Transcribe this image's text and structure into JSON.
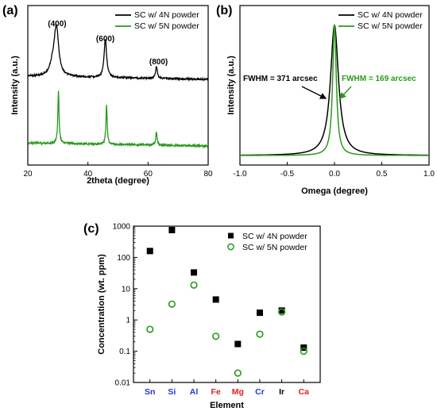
{
  "colors": {
    "black": "#000000",
    "green": "#2a9a1c",
    "blue": "#1f35d6",
    "red": "#e02020",
    "annotation_black": "#000000"
  },
  "chart_data": [
    {
      "type": "line",
      "panel": "(a)",
      "xlabel": "2theta (degree)",
      "ylabel": "Intensity (a.u.)",
      "xlim": [
        20,
        80
      ],
      "xticks": [
        "20",
        "40",
        "60",
        "80"
      ],
      "legend": [
        "SC w/ 4N powder",
        "SC w/ 5N powder"
      ],
      "legend_position": "top-right",
      "annotations": [
        "(400)",
        "(600)",
        "(800)"
      ],
      "series": [
        {
          "name": "SC w/ 4N powder",
          "peaks": [
            {
              "x": 29.5,
              "height": 1.0,
              "width": 0.9,
              "shoulder": true
            },
            {
              "x": 45.8,
              "height": 0.78,
              "width": 0.5
            },
            {
              "x": 62.8,
              "height": 0.25,
              "width": 0.35
            }
          ]
        },
        {
          "name": "SC w/ 5N powder",
          "peaks": [
            {
              "x": 30.2,
              "height": 1.0,
              "width": 0.25
            },
            {
              "x": 46.2,
              "height": 0.73,
              "width": 0.25
            },
            {
              "x": 62.8,
              "height": 0.26,
              "width": 0.25
            }
          ]
        }
      ]
    },
    {
      "type": "line",
      "panel": "(b)",
      "xlabel": "Omega (degree)",
      "ylabel": "Intensity (a.u.)",
      "xlim": [
        -1.0,
        1.0
      ],
      "xticks": [
        "-1.0",
        "-0.5",
        "0.0",
        "0.5",
        "1.0"
      ],
      "legend": [
        "SC w/ 4N powder",
        "SC w/ 5N powder"
      ],
      "legend_position": "top-right",
      "annotations": [
        "FWHM = 371 arcsec",
        "FWHM = 169 arcsec"
      ],
      "series": [
        {
          "name": "SC w/ 4N powder",
          "center": 0.0,
          "fwhm_deg": 0.103
        },
        {
          "name": "SC w/ 5N powder",
          "center": 0.0,
          "fwhm_deg": 0.047
        }
      ]
    },
    {
      "type": "scatter",
      "panel": "(c)",
      "xlabel": "Element",
      "ylabel": "Concentration (wt. ppm)",
      "yscale": "log",
      "ylim": [
        0.01,
        1000
      ],
      "yticks": [
        "0.01",
        "0.1",
        "1",
        "10",
        "100",
        "1000"
      ],
      "categories": [
        "Sn",
        "Si",
        "Al",
        "Fe",
        "Mg",
        "Cr",
        "Ir",
        "Ca"
      ],
      "category_colors": [
        "#1f35d6",
        "#1f35d6",
        "#1f35d6",
        "#e02020",
        "#e02020",
        "#1f35d6",
        "#000000",
        "#e02020"
      ],
      "legend": [
        "SC w/ 4N powder",
        "SC w/ 5N powder"
      ],
      "legend_position": "top-right",
      "series": [
        {
          "name": "SC w/ 4N powder",
          "marker": "filled-square",
          "values": [
            160,
            750,
            33,
            4.5,
            0.17,
            1.7,
            2.0,
            0.13
          ]
        },
        {
          "name": "SC w/ 5N powder",
          "marker": "open-circle",
          "values": [
            0.5,
            3.2,
            13,
            0.3,
            0.02,
            0.35,
            1.8,
            0.1
          ]
        }
      ]
    }
  ]
}
